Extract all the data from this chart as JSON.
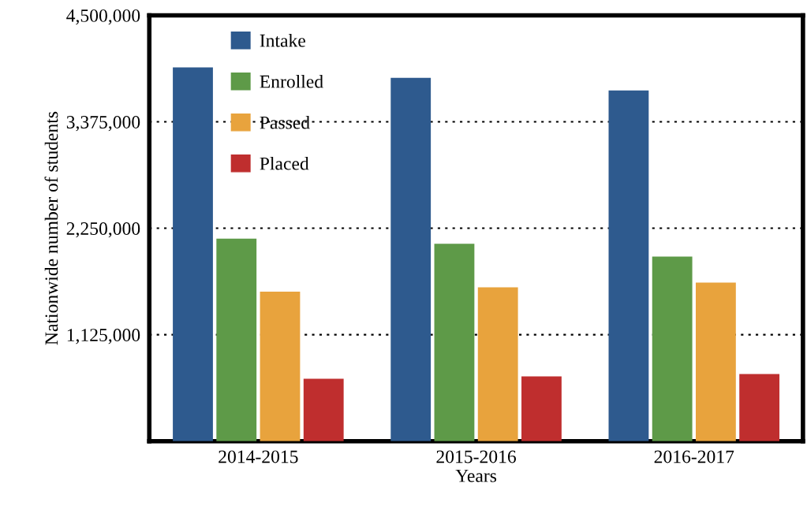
{
  "chart_data": {
    "type": "bar",
    "xlabel": "Years",
    "ylabel": "Nationwide number of students",
    "categories": [
      "2014-2015",
      "2015-2016",
      "2016-2017"
    ],
    "series": [
      {
        "name": "Intake",
        "color": "#2e5a8e",
        "values": [
          3950000,
          3840000,
          3705000
        ]
      },
      {
        "name": "Enrolled",
        "color": "#5e9a48",
        "values": [
          2140000,
          2085000,
          1950000
        ]
      },
      {
        "name": "Passed",
        "color": "#e8a33d",
        "values": [
          1580000,
          1625000,
          1675000
        ]
      },
      {
        "name": "Placed",
        "color": "#bf2e2e",
        "values": [
          660000,
          685000,
          710000
        ]
      }
    ],
    "ylim": [
      0,
      4500000
    ],
    "yticks": [
      {
        "value": 1125000,
        "label": "1,125,000"
      },
      {
        "value": 2250000,
        "label": "2,250,000"
      },
      {
        "value": 3375000,
        "label": "3,375,000"
      },
      {
        "value": 4500000,
        "label": "4,500,000"
      }
    ],
    "grid": "y",
    "legend": "top left"
  }
}
